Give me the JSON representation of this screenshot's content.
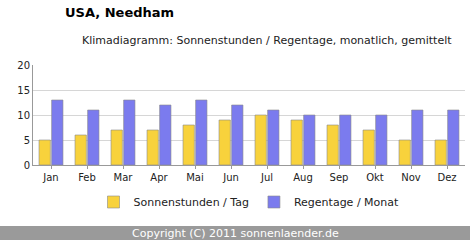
{
  "chart_data": {
    "type": "bar",
    "title": "USA, Needham",
    "subtitle": "Klimadiagramm: Sonnenstunden / Regentage, monatlich, gemittelt",
    "annotations": [
      "Copyright (C) 2011 sonnenlaender.de"
    ],
    "categories": [
      "Jan",
      "Feb",
      "Mar",
      "Apr",
      "Mai",
      "Jun",
      "Jul",
      "Aug",
      "Sep",
      "Okt",
      "Nov",
      "Dez"
    ],
    "series": [
      {
        "name": "Sonnenstunden / Tag",
        "color": "#f8d23c",
        "values": [
          5,
          6,
          7,
          7,
          8,
          9,
          10,
          9,
          8,
          7,
          5,
          5
        ]
      },
      {
        "name": "Regentage / Monat",
        "color": "#7b7bee",
        "values": [
          13,
          11,
          13,
          12,
          13,
          12,
          11,
          10,
          10,
          10,
          11,
          11
        ]
      }
    ],
    "ylim": [
      0,
      20
    ],
    "yticks": [
      0,
      5,
      10,
      15,
      20
    ],
    "grid": true,
    "legend": "bottom"
  }
}
